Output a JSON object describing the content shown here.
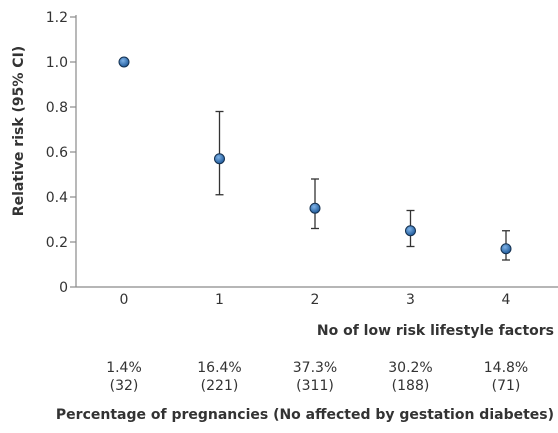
{
  "chart_data": {
    "type": "scatter",
    "title": "",
    "xlabel": "No of low risk lifestyle factors",
    "ylabel": "Relative risk (95% CI)",
    "ylim": [
      0,
      1.2
    ],
    "yticks": [
      "0",
      "0.2",
      "0.4",
      "0.6",
      "0.8",
      "1.0",
      "1.2"
    ],
    "categories": [
      "0",
      "1",
      "2",
      "3",
      "4"
    ],
    "values": [
      1.0,
      0.57,
      0.35,
      0.25,
      0.17
    ],
    "ci_low": [
      null,
      0.41,
      0.26,
      0.18,
      0.12
    ],
    "ci_high": [
      null,
      0.78,
      0.48,
      0.34,
      0.25
    ],
    "percentages": [
      "1.4%",
      "16.4%",
      "37.3%",
      "30.2%",
      "14.8%"
    ],
    "counts": [
      "(32)",
      "(221)",
      "(311)",
      "(188)",
      "(71)"
    ],
    "secondary_xlabel": "Percentage of pregnancies (No affected by gestation diabetes)",
    "grid": false,
    "legend": "none",
    "colors": {
      "marker": "#2f6fb5",
      "marker_edge": "#14304f",
      "axis": "#8a8a8a",
      "errorbar": "#333333",
      "text": "#333333"
    }
  }
}
